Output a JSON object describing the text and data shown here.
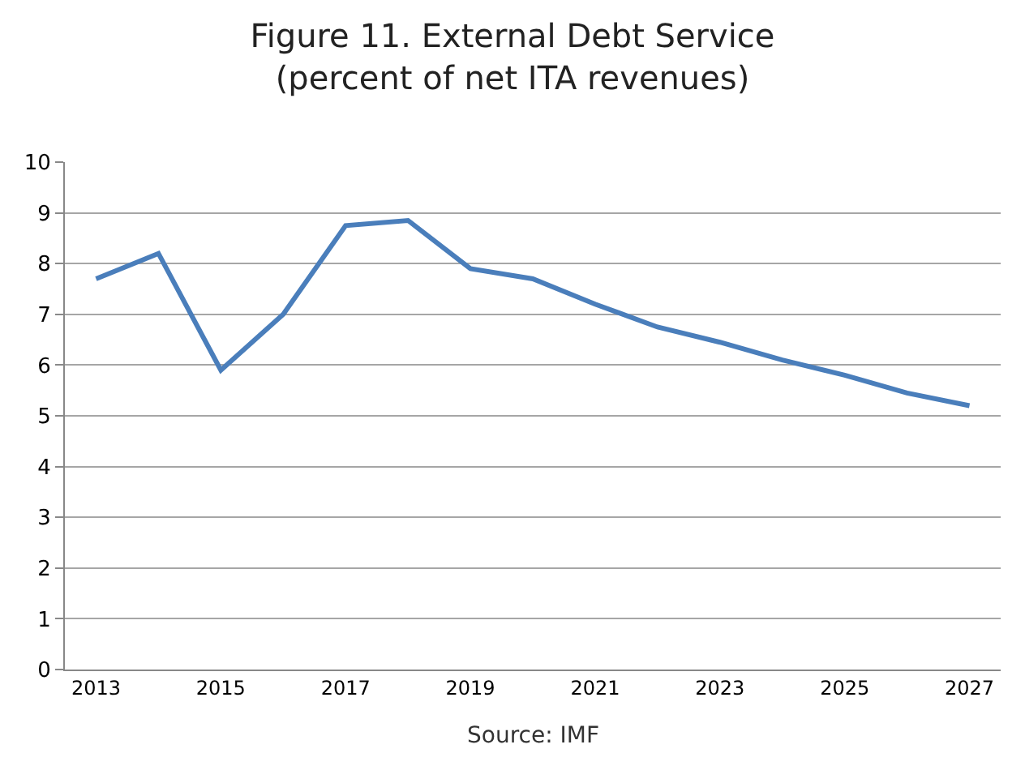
{
  "chart_data": {
    "type": "line",
    "title": "Figure 11. External Debt Service\n(percent of net ITA revenues)",
    "categories": [
      "2013",
      null,
      "2015",
      null,
      "2017",
      null,
      "2019",
      null,
      "2021",
      null,
      "2023",
      null,
      "2025",
      null,
      "2027"
    ],
    "series": [
      {
        "color": "#4a7ebb",
        "values": [
          7.7,
          8.2,
          5.9,
          7.0,
          8.75,
          8.85,
          7.9,
          7.7,
          7.2,
          6.75,
          6.45,
          6.1,
          5.8,
          5.45,
          5.2
        ]
      }
    ],
    "ylim": [
      0,
      10
    ],
    "yticks": [
      0,
      1,
      2,
      3,
      4,
      5,
      6,
      7,
      8,
      9,
      10
    ],
    "grid": "y",
    "marker": "none",
    "line_style": "solid",
    "annotations": [
      "Source: IMF"
    ]
  }
}
